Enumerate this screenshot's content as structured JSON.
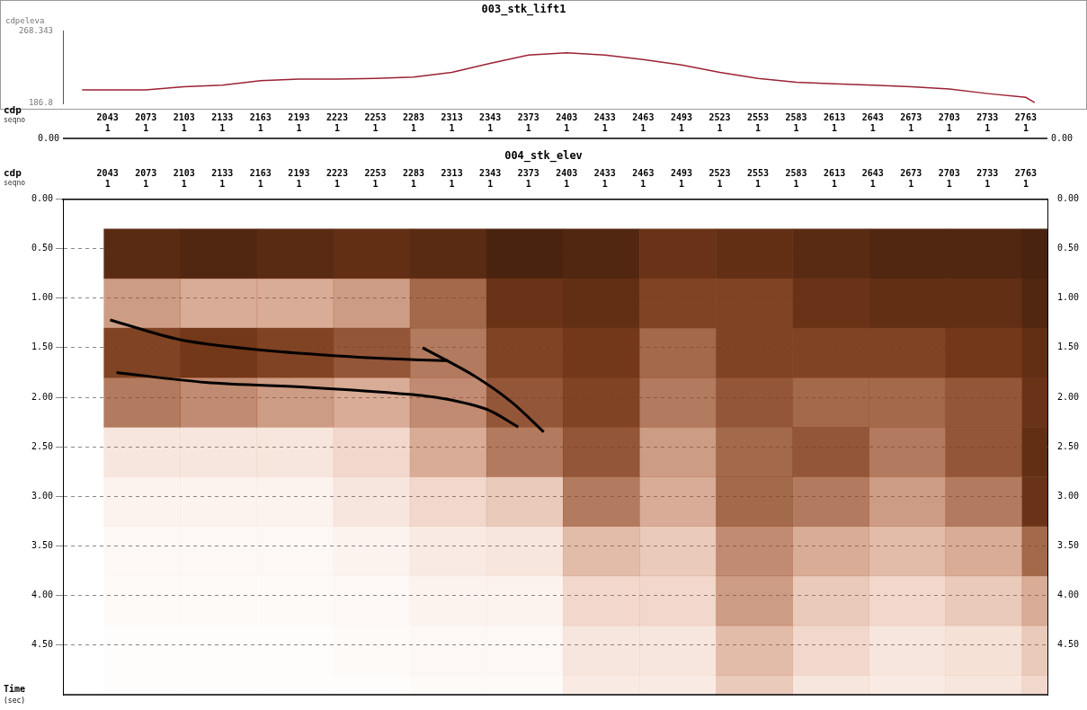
{
  "chart_data": [
    {
      "type": "line",
      "title": "003_stk_lift1",
      "ylabel": "cdpeleva",
      "xlabel": "cdp",
      "seqno_label": "seqno",
      "axis_row_label": "0.00",
      "x": [
        2023,
        2043,
        2073,
        2103,
        2133,
        2163,
        2193,
        2223,
        2253,
        2283,
        2313,
        2343,
        2373,
        2403,
        2433,
        2463,
        2493,
        2523,
        2553,
        2583,
        2613,
        2643,
        2673,
        2703,
        2733,
        2763,
        2770
      ],
      "values": [
        202.1,
        202.1,
        202.1,
        205.5,
        207.2,
        212.3,
        214.0,
        214.0,
        214.8,
        216.5,
        221.6,
        231.8,
        241.1,
        243.7,
        241.1,
        236.0,
        230.0,
        221.6,
        214.8,
        210.6,
        208.9,
        207.2,
        205.5,
        202.9,
        197.8,
        193.6,
        187.6
      ],
      "color": "#9b2335",
      "xlim": [
        2008,
        2780
      ],
      "xticks": [
        2043,
        2073,
        2103,
        2133,
        2163,
        2193,
        2223,
        2253,
        2283,
        2313,
        2343,
        2373,
        2403,
        2433,
        2463,
        2493,
        2523,
        2553,
        2583,
        2613,
        2643,
        2673,
        2703,
        2733,
        2763
      ],
      "seqno": [
        1,
        1,
        1,
        1,
        1,
        1,
        1,
        1,
        1,
        1,
        1,
        1,
        1,
        1,
        1,
        1,
        1,
        1,
        1,
        1,
        1,
        1,
        1,
        1,
        1
      ],
      "ylim": [
        186.8,
        268.343
      ],
      "yticks": [
        186.8,
        268.343
      ],
      "grid": false
    },
    {
      "type": "heatmap",
      "title": "004_stk_elev",
      "xlabel": "cdp",
      "seqno_label": "seqno",
      "ylabel": "Time (sec)",
      "xlim": [
        2008,
        2780
      ],
      "xticks": [
        2043,
        2073,
        2103,
        2133,
        2163,
        2193,
        2223,
        2253,
        2283,
        2313,
        2343,
        2373,
        2403,
        2433,
        2463,
        2493,
        2523,
        2553,
        2583,
        2613,
        2643,
        2673,
        2703,
        2733,
        2763
      ],
      "seqno": [
        1,
        1,
        1,
        1,
        1,
        1,
        1,
        1,
        1,
        1,
        1,
        1,
        1,
        1,
        1,
        1,
        1,
        1,
        1,
        1,
        1,
        1,
        1,
        1,
        1
      ],
      "ylim": [
        0,
        5
      ],
      "yticks": [
        {
          "value": 0,
          "label": "0.00"
        },
        {
          "value": 0.5,
          "label": "0.50"
        },
        {
          "value": 1,
          "label": "1.00"
        },
        {
          "value": 1.5,
          "label": "1.50"
        },
        {
          "value": 2,
          "label": "2.00"
        },
        {
          "value": 2.5,
          "label": "2.50"
        },
        {
          "value": 3,
          "label": "3.00"
        },
        {
          "value": 3.5,
          "label": "3.50"
        },
        {
          "value": 4,
          "label": "4.00"
        },
        {
          "value": 4.5,
          "label": "4.50"
        }
      ],
      "grid": true,
      "color": "#e06a30",
      "cdp_edges": [
        2040,
        2100,
        2160,
        2220,
        2280,
        2340,
        2400,
        2460,
        2520,
        2580,
        2640,
        2700,
        2760,
        2780
      ],
      "time_edges": [
        0.3,
        0.8,
        1.3,
        1.8,
        2.3,
        2.8,
        3.3,
        3.8,
        4.3,
        4.8,
        5.0
      ],
      "amplitude_range": [
        0,
        1
      ],
      "amplitude": [
        [
          0.8,
          0.85,
          0.8,
          0.75,
          0.8,
          0.9,
          0.85,
          0.7,
          0.75,
          0.8,
          0.85,
          0.85,
          0.9
        ],
        [
          0.35,
          0.3,
          0.3,
          0.35,
          0.5,
          0.7,
          0.75,
          0.6,
          0.6,
          0.7,
          0.75,
          0.75,
          0.85
        ],
        [
          0.6,
          0.65,
          0.6,
          0.55,
          0.45,
          0.6,
          0.65,
          0.5,
          0.6,
          0.6,
          0.6,
          0.65,
          0.75
        ],
        [
          0.45,
          0.4,
          0.35,
          0.3,
          0.4,
          0.55,
          0.6,
          0.45,
          0.55,
          0.5,
          0.5,
          0.55,
          0.7
        ],
        [
          0.1,
          0.1,
          0.1,
          0.15,
          0.3,
          0.45,
          0.55,
          0.35,
          0.5,
          0.55,
          0.45,
          0.55,
          0.75
        ],
        [
          0.05,
          0.05,
          0.05,
          0.1,
          0.15,
          0.2,
          0.45,
          0.3,
          0.5,
          0.45,
          0.35,
          0.45,
          0.7
        ],
        [
          0.03,
          0.03,
          0.03,
          0.05,
          0.08,
          0.1,
          0.25,
          0.2,
          0.4,
          0.3,
          0.25,
          0.3,
          0.5
        ],
        [
          0.02,
          0.02,
          0.02,
          0.03,
          0.05,
          0.05,
          0.15,
          0.15,
          0.35,
          0.2,
          0.15,
          0.2,
          0.3
        ],
        [
          0.01,
          0.01,
          0.01,
          0.02,
          0.03,
          0.03,
          0.1,
          0.1,
          0.25,
          0.15,
          0.1,
          0.12,
          0.2
        ],
        [
          0.01,
          0.01,
          0.01,
          0.01,
          0.02,
          0.02,
          0.08,
          0.08,
          0.2,
          0.1,
          0.08,
          0.1,
          0.15
        ]
      ],
      "reflectors": [
        {
          "x": [
            2045,
            2100,
            2160,
            2220,
            2280,
            2310
          ],
          "y": [
            1.22,
            1.42,
            1.52,
            1.58,
            1.62,
            1.63
          ]
        },
        {
          "x": [
            2050,
            2120,
            2200,
            2260,
            2300,
            2340,
            2365
          ],
          "y": [
            1.75,
            1.85,
            1.9,
            1.95,
            2.0,
            2.12,
            2.3
          ]
        },
        {
          "x": [
            2290,
            2330,
            2360,
            2385
          ],
          "y": [
            1.5,
            1.78,
            2.05,
            2.35
          ]
        }
      ]
    }
  ]
}
